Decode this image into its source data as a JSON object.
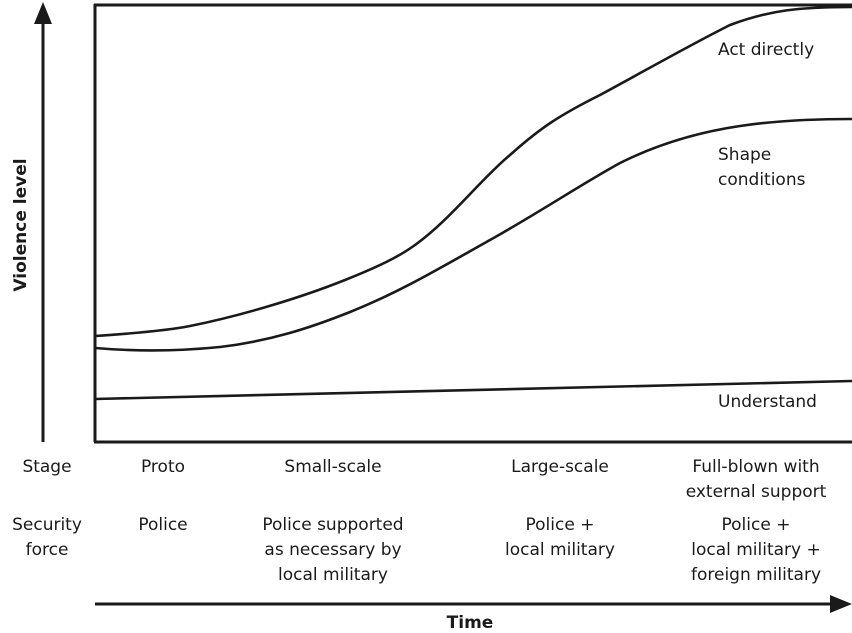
{
  "y_axis_label": "Violence level",
  "x_axis_label": "Time",
  "curves": [
    {
      "label": [
        "Act directly"
      ]
    },
    {
      "label": [
        "Shape",
        "conditions"
      ]
    },
    {
      "label": [
        "Understand"
      ]
    }
  ],
  "rows": [
    {
      "header": [
        "Stage"
      ],
      "cells": [
        [
          "Proto"
        ],
        [
          "Small-scale"
        ],
        [
          "Large-scale"
        ],
        [
          "Full-blown with",
          "external support"
        ]
      ]
    },
    {
      "header": [
        "Security",
        "force"
      ],
      "cells": [
        [
          "Police"
        ],
        [
          "Police supported",
          "as necessary by",
          "local military"
        ],
        [
          "Police +",
          "local military"
        ],
        [
          "Police +",
          "local military +",
          "foreign military"
        ]
      ]
    }
  ]
}
